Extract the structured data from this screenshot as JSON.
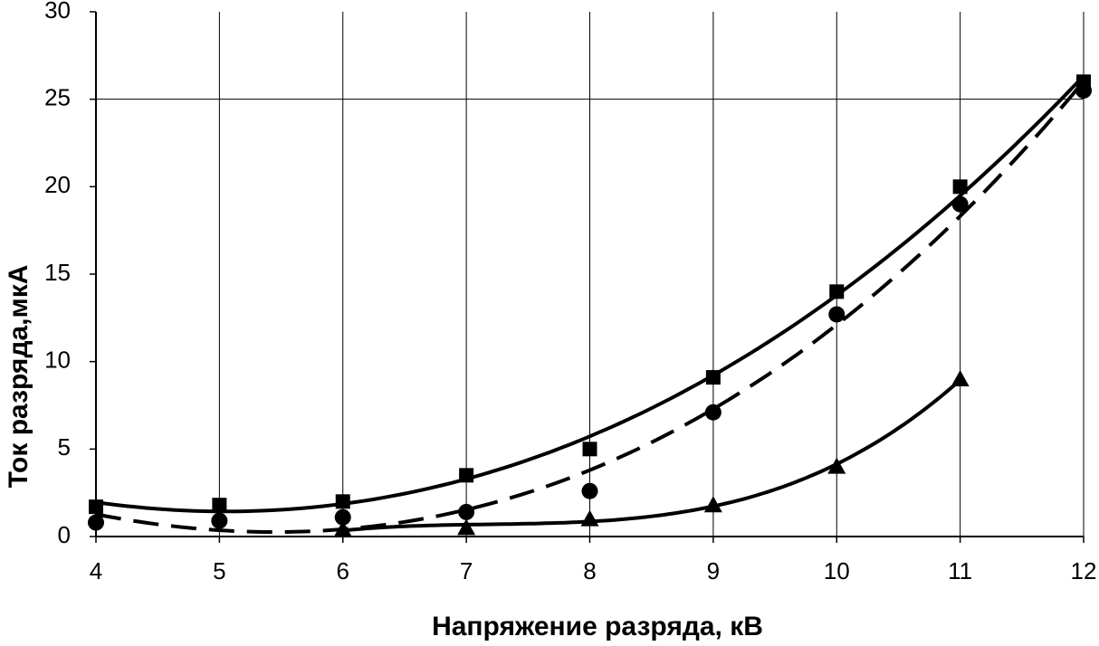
{
  "chart_data": {
    "type": "scatter",
    "x_label": "Напряжение разряда, кВ",
    "y_label": "Ток разряда,мкА",
    "x": [
      4,
      5,
      6,
      7,
      8,
      9,
      10,
      11,
      12
    ],
    "series": [
      {
        "marker": "square",
        "color": "#000000",
        "line": "solid",
        "values": [
          1.7,
          1.8,
          2.0,
          3.5,
          5.0,
          9.1,
          14.0,
          20.0,
          26.0
        ]
      },
      {
        "marker": "circle",
        "color": "#000000",
        "line": "dashed",
        "values": [
          0.8,
          0.9,
          1.1,
          1.4,
          2.6,
          7.1,
          12.7,
          19.0,
          25.5
        ]
      },
      {
        "marker": "triangle",
        "color": "#000000",
        "line": "solid",
        "values": [
          null,
          null,
          0.4,
          0.5,
          1.0,
          1.8,
          4.0,
          9.0,
          null
        ]
      }
    ],
    "xlim": [
      4,
      12
    ],
    "xticks": [
      4,
      5,
      6,
      7,
      8,
      9,
      10,
      11,
      12
    ],
    "ylim": [
      0,
      30
    ],
    "yticks": [
      0,
      5,
      10,
      15,
      20,
      25,
      30
    ],
    "x_grid": true,
    "y_grid": [
      25
    ]
  }
}
